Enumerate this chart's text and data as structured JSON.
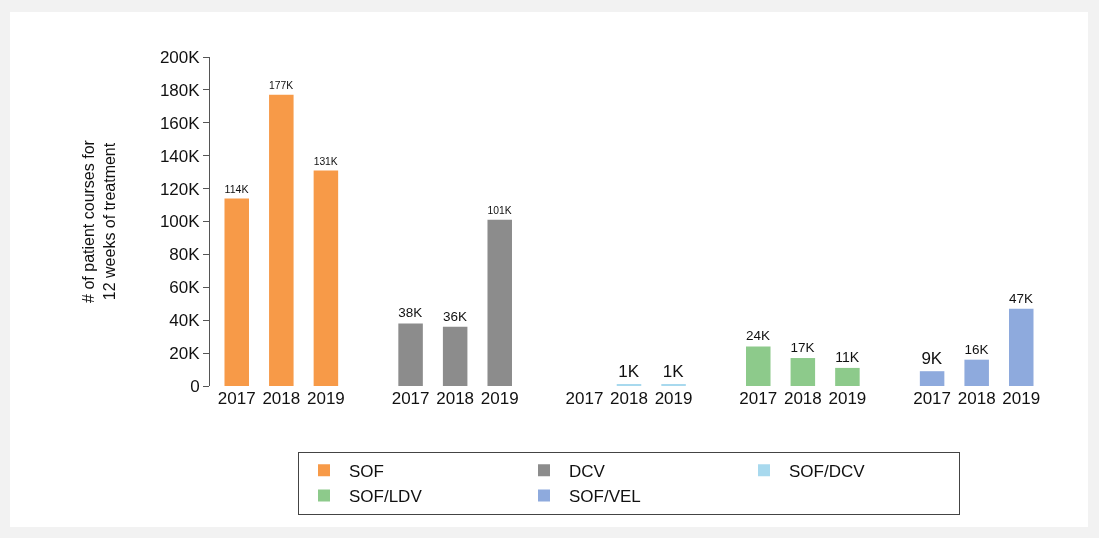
{
  "chart_data": {
    "type": "bar",
    "ylabel": "# of patient courses for\n12 weeks of treatment",
    "categories": [
      "2017",
      "2018",
      "2019",
      "2017",
      "2018",
      "2019",
      "2017",
      "2018",
      "2019",
      "2017",
      "2018",
      "2019",
      "2017",
      "2018",
      "2019"
    ],
    "series": [
      {
        "name": "SOF",
        "color": "#f79a48",
        "values": [
          114000,
          177000,
          131000,
          null,
          null,
          null,
          null,
          null,
          null,
          null,
          null,
          null,
          null,
          null,
          null
        ],
        "value_labels": [
          "114K",
          "177K",
          "131K",
          null,
          null,
          null,
          null,
          null,
          null,
          null,
          null,
          null,
          null,
          null,
          null
        ]
      },
      {
        "name": "DCV",
        "color": "#8c8c8c",
        "values": [
          null,
          null,
          null,
          38000,
          36000,
          101000,
          null,
          null,
          null,
          null,
          null,
          null,
          null,
          null,
          null
        ],
        "value_labels": [
          null,
          null,
          null,
          "38K",
          "36K",
          "101K",
          null,
          null,
          null,
          null,
          null,
          null,
          null,
          null,
          null
        ]
      },
      {
        "name": "SOF/DCV",
        "color": "#a8d9ee",
        "values": [
          null,
          null,
          null,
          null,
          null,
          null,
          null,
          1000,
          1000,
          null,
          null,
          null,
          null,
          null,
          null
        ],
        "value_labels": [
          null,
          null,
          null,
          null,
          null,
          null,
          null,
          "1K",
          "1K",
          null,
          null,
          null,
          null,
          null,
          null
        ]
      },
      {
        "name": "SOF/LDV",
        "color": "#8dca8b",
        "values": [
          null,
          null,
          null,
          null,
          null,
          null,
          null,
          null,
          null,
          24000,
          17000,
          11000,
          null,
          null,
          null
        ],
        "value_labels": [
          null,
          null,
          null,
          null,
          null,
          null,
          null,
          null,
          null,
          "24K",
          "17K",
          "11K",
          null,
          null,
          null
        ]
      },
      {
        "name": "SOF/VEL",
        "color": "#8eaadd",
        "values": [
          null,
          null,
          null,
          null,
          null,
          null,
          null,
          null,
          null,
          null,
          null,
          null,
          9000,
          16000,
          47000
        ],
        "value_labels": [
          null,
          null,
          null,
          null,
          null,
          null,
          null,
          null,
          null,
          null,
          null,
          null,
          "9K",
          "16K",
          "47K"
        ]
      }
    ],
    "ylim": [
      0,
      200000
    ],
    "yticks": [
      0,
      {
        "value": 20000,
        "label": "20K"
      },
      {
        "value": 40000,
        "label": "40K"
      },
      {
        "value": 60000,
        "label": "60K"
      },
      {
        "value": 80000,
        "label": "80K"
      },
      {
        "value": 100000,
        "label": "100K"
      },
      {
        "value": 120000,
        "label": "120K"
      },
      {
        "value": 140000,
        "label": "140K"
      },
      {
        "value": 160000,
        "label": "160K"
      },
      {
        "value": 180000,
        "label": "180K"
      },
      {
        "value": 200000,
        "label": "200K"
      }
    ],
    "grid": false,
    "legend": "bottom"
  }
}
